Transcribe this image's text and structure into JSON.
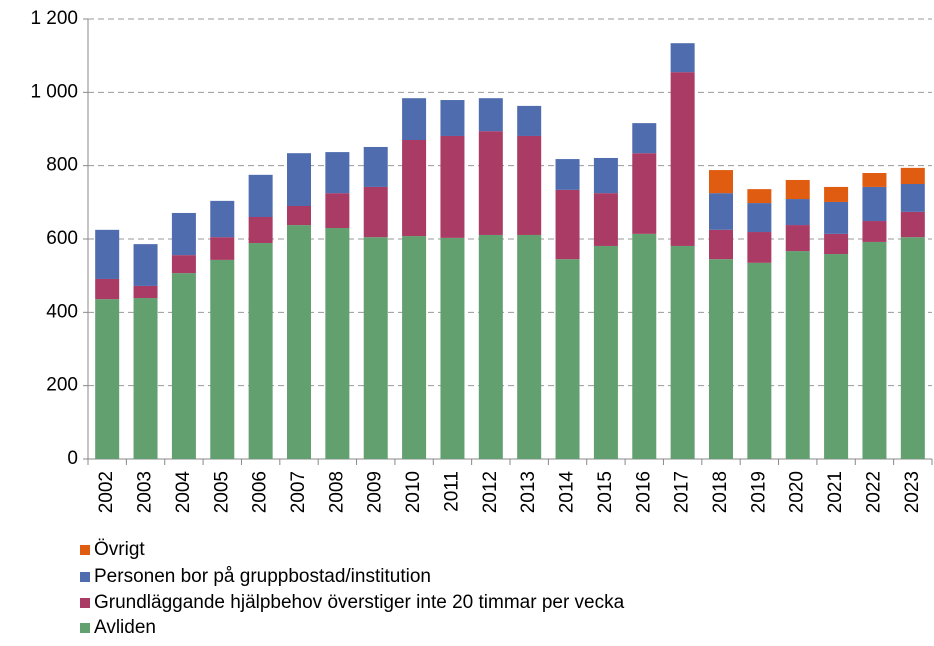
{
  "chart_data": {
    "type": "stacked_bar",
    "categories": [
      "2002",
      "2003",
      "2004",
      "2005",
      "2006",
      "2007",
      "2008",
      "2009",
      "2010",
      "2011",
      "2012",
      "2013",
      "2014",
      "2015",
      "2016",
      "2017",
      "2018",
      "2019",
      "2020",
      "2021",
      "2022",
      "2023"
    ],
    "series": [
      {
        "name": "Avliden",
        "color": "#62a070",
        "values": [
          436,
          439,
          507,
          543,
          589,
          638,
          630,
          605,
          608,
          603,
          611,
          611,
          545,
          581,
          614,
          581,
          545,
          535,
          567,
          559,
          592,
          605
        ]
      },
      {
        "name": "Grundläggande hjälpbehov överstiger inte 20 timmar per vecka",
        "color": "#a93b65",
        "values": [
          55,
          33,
          49,
          62,
          71,
          52,
          95,
          137,
          262,
          278,
          283,
          270,
          189,
          144,
          220,
          474,
          80,
          84,
          71,
          55,
          57,
          69
        ]
      },
      {
        "name": "Personen bor på gruppbostad/institution",
        "color": "#4f6cae",
        "values": [
          134,
          114,
          115,
          99,
          115,
          144,
          112,
          109,
          114,
          98,
          90,
          82,
          84,
          96,
          82,
          79,
          100,
          79,
          71,
          87,
          93,
          76
        ]
      },
      {
        "name": "Övrigt",
        "color": "#e05c10",
        "values": [
          0,
          0,
          0,
          0,
          0,
          0,
          0,
          0,
          0,
          0,
          0,
          0,
          0,
          0,
          0,
          0,
          63,
          38,
          52,
          41,
          38,
          44
        ]
      }
    ],
    "ylim": [
      0,
      1200
    ],
    "yticks": [
      0,
      200,
      400,
      600,
      800,
      {
        "value": 1000,
        "label": "1 000"
      },
      {
        "value": 1200,
        "label": "1 200"
      }
    ],
    "grid": true
  }
}
